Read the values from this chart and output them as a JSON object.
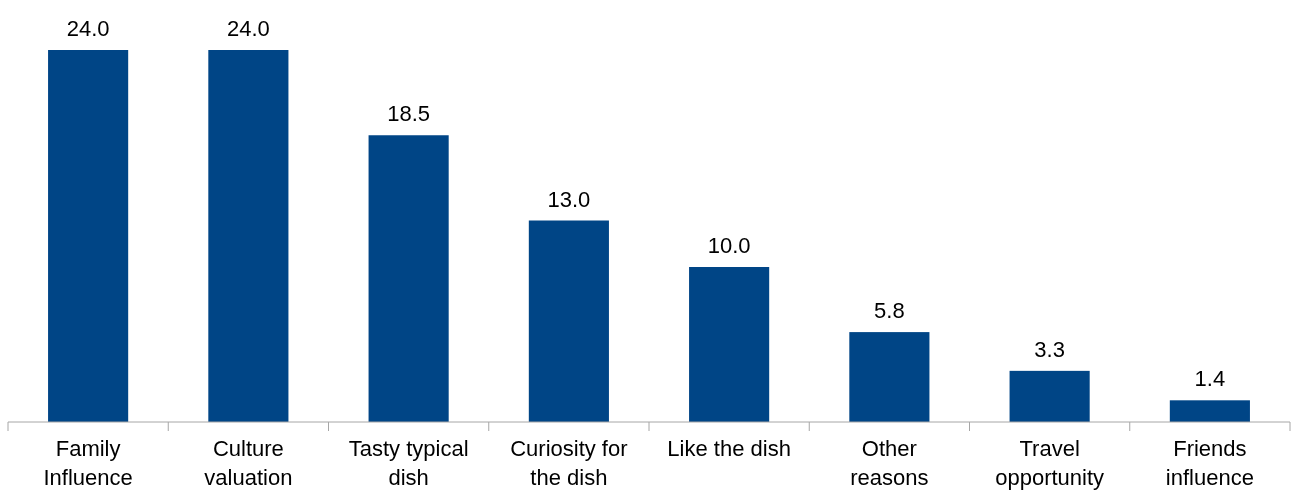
{
  "chart_data": {
    "type": "bar",
    "categories": [
      "Family Influence",
      "Culture valuation",
      "Tasty typical dish",
      "Curiosity for the dish",
      "Like the dish",
      "Other reasons",
      "Travel opportunity",
      "Friends influence"
    ],
    "values": [
      24.0,
      24.0,
      18.5,
      13.0,
      10.0,
      5.8,
      3.3,
      1.4
    ],
    "value_labels": [
      "24.0",
      "24.0",
      "18.5",
      "13.0",
      "10.0",
      "5.8",
      "3.3",
      "1.4"
    ],
    "color": "#004586"
  }
}
